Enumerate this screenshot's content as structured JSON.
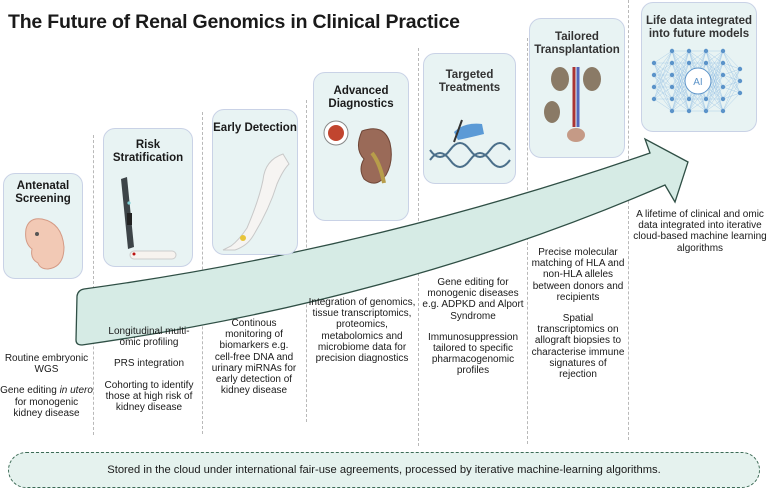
{
  "title": "The Future of Renal Genomics in Clinical Practice",
  "colors": {
    "card_fill": "#e8f3f3",
    "card_border": "#c9d2e6",
    "arrow_fill": "#d6ebe5",
    "arrow_stroke": "#2f4f45",
    "footer_border": "#3c6a55"
  },
  "stages": [
    {
      "title": "Antenatal Screening",
      "icon": "embryo-icon",
      "text": [
        "Routine embryonic WGS"
      ],
      "extra_prefix": "Gene editing ",
      "extra_italic": "in utero",
      "extra_suffix": " for monogenic kidney disease"
    },
    {
      "title": "Risk Stratification",
      "icon": "glucometer-finger-prick-icon",
      "text": [
        "Longitudinal multi-omic profiling",
        "PRS integration",
        "Cohorting to identify those at high risk of kidney disease"
      ]
    },
    {
      "title": "Early Detection",
      "icon": "arm-sensor-icon",
      "text": [
        "Continous monitoring of biomarkers e.g. cell-free DNA and urinary miRNAs for early detection of kidney disease"
      ]
    },
    {
      "title": "Advanced Diagnostics",
      "icon": "kidney-magnified-icon",
      "text": [
        "Integration of genomics, tissue transcriptomics, proteomics, metabolomics and microbiome data for precision diagnostics"
      ]
    },
    {
      "title": "Targeted Treatments",
      "icon": "gene-editing-dna-icon",
      "text": [
        "Gene editing for monogenic diseases e.g. ADPKD and Alport Syndrome",
        "Immunosuppression tailored to specific pharmacogenomic profiles"
      ]
    },
    {
      "title": "Tailored Transplantation",
      "icon": "kidney-transplant-icon",
      "text": [
        "Precise molecular matching of HLA and non-HLA alleles between donors and recipients",
        "Spatial transcriptomics on allograft biopsies to characterise immune signatures of rejection"
      ]
    },
    {
      "title": "Life data integrated into future models",
      "icon": "neural-network-ai-icon",
      "ai_label": "AI",
      "text": [
        "A lifetime of clinical and omic data integrated into iterative cloud-based machine learning algorithms"
      ]
    }
  ],
  "footer": "Stored in the cloud under international fair-use agreements, processed by iterative machine-learning algorithms."
}
